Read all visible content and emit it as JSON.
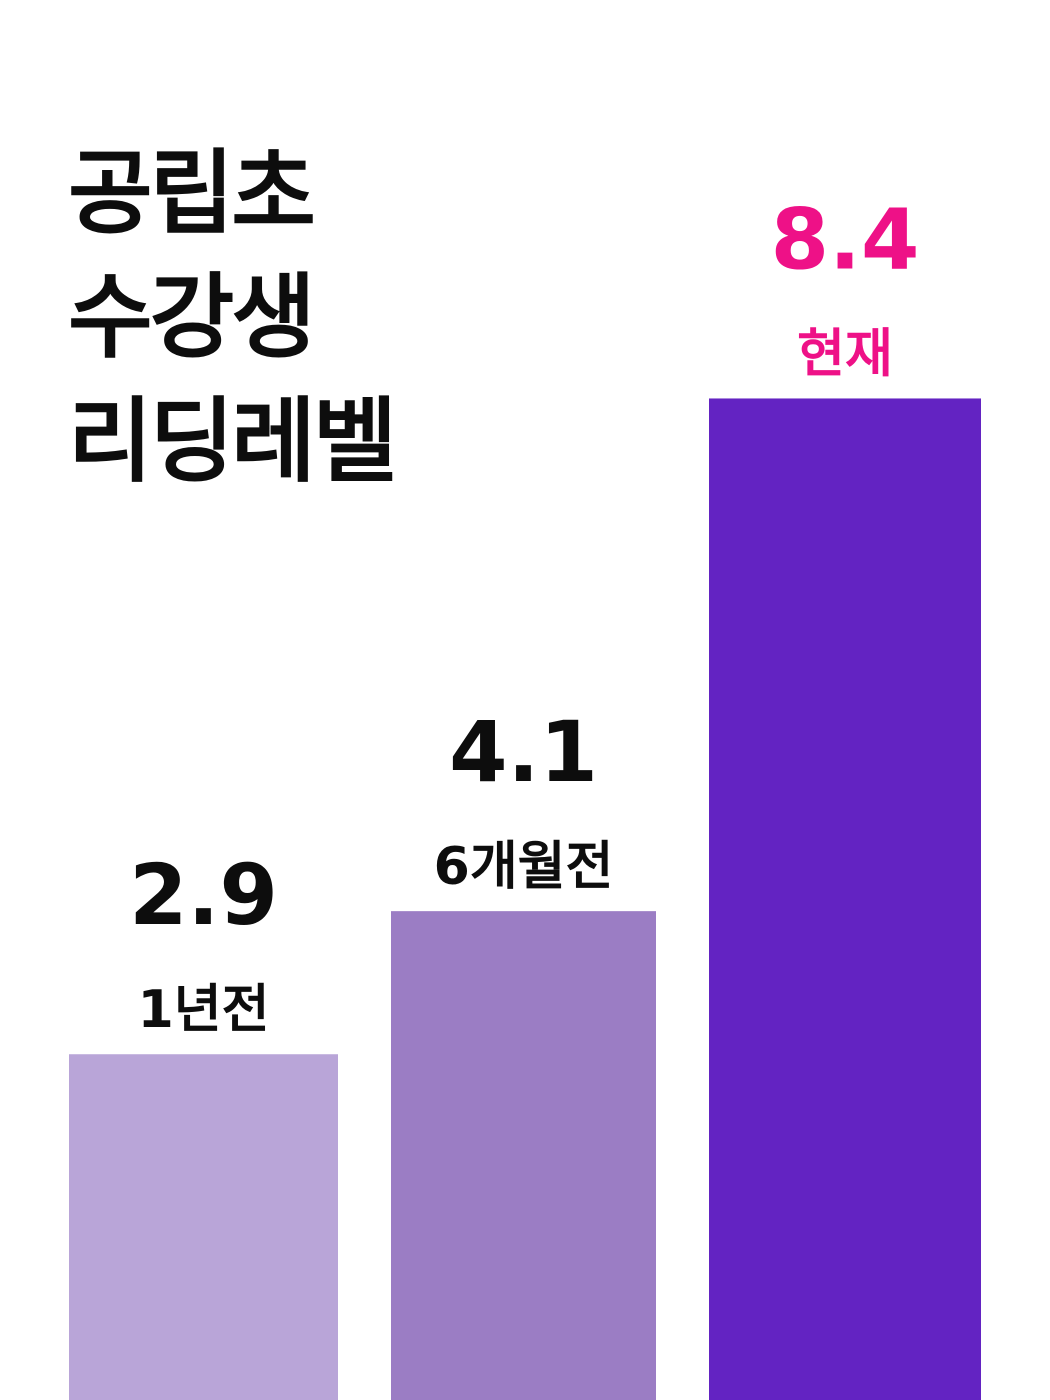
{
  "title_lines": [
    "공립초",
    "수강생",
    "리딩레벨"
  ],
  "colors": {
    "bar_1": "#b9a5d8",
    "bar_2": "#9b7dc4",
    "bar_3": "#6323c2",
    "highlight_text": "#ee1187",
    "text": "#0d0d0d",
    "background": "#ffffff"
  },
  "chart_data": {
    "type": "bar",
    "title": "공립초 수강생 리딩레벨",
    "categories": [
      "1년전",
      "6개월전",
      "현재"
    ],
    "values": [
      2.9,
      4.1,
      8.4
    ],
    "value_labels": [
      "2.9",
      "4.1",
      "8.4"
    ],
    "highlight_index": 2,
    "ylim": [
      0,
      10.4
    ],
    "grid": false,
    "legend": "none",
    "xlabel": "",
    "ylabel": ""
  }
}
